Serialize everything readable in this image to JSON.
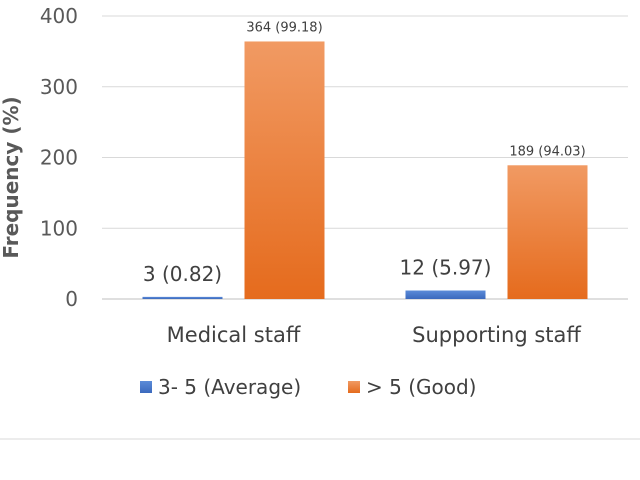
{
  "chart_data": {
    "type": "bar",
    "title": "",
    "xlabel": "",
    "ylabel": "Frequency (%)",
    "ylim": [
      0,
      400
    ],
    "yticks": [
      0,
      100,
      200,
      300,
      400
    ],
    "grid": true,
    "legend_position": "bottom",
    "categories": [
      "Medical staff",
      "Supporting staff"
    ],
    "series": [
      {
        "name": "3- 5 (Average)",
        "color": "#4472c4",
        "values": [
          3,
          12
        ],
        "data_labels": [
          "3 (0.82)",
          "12 (5.97)"
        ]
      },
      {
        "name": "> 5 (Good)",
        "color": "#ed7d31",
        "values": [
          364,
          189
        ],
        "data_labels": [
          "364 (99.18)",
          "189 (94.03)"
        ]
      }
    ]
  }
}
